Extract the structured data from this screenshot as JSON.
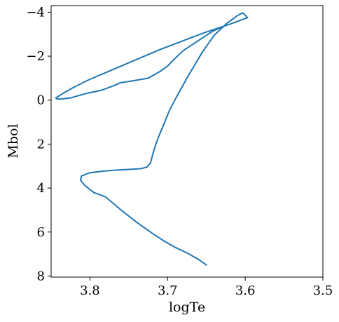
{
  "chart_data": {
    "type": "line",
    "title": "",
    "xlabel": "logTe",
    "ylabel": "Mbol",
    "xlim": [
      3.85,
      3.5
    ],
    "ylim": [
      8.05,
      -4.3
    ],
    "x_inverted": true,
    "y_inverted": true,
    "xticks": [
      3.8,
      3.7,
      3.6,
      3.5
    ],
    "xtick_labels": [
      "3.8",
      "3.7",
      "3.6",
      "3.5"
    ],
    "yticks": [
      -4,
      -2,
      0,
      2,
      4,
      6,
      8
    ],
    "ytick_labels": [
      "−4",
      "−2",
      "0",
      "2",
      "4",
      "6",
      "8"
    ],
    "grid": false,
    "legend": "none",
    "series": [
      {
        "color": "#1f77b4",
        "x": [
          3.65,
          3.66,
          3.675,
          3.69,
          3.705,
          3.72,
          3.74,
          3.76,
          3.78,
          3.795,
          3.806,
          3.812,
          3.811,
          3.8,
          3.78,
          3.765,
          3.75,
          3.735,
          3.727,
          3.722,
          3.719,
          3.716,
          3.712,
          3.706,
          3.698,
          3.69,
          3.683,
          3.676,
          3.666,
          3.655,
          3.64,
          3.625,
          3.61,
          3.603,
          3.597,
          3.62,
          3.65,
          3.68,
          3.71,
          3.74,
          3.77,
          3.8,
          3.82,
          3.835,
          3.844,
          3.843,
          3.838,
          3.825,
          3.805,
          3.785,
          3.77,
          3.76,
          3.745,
          3.725,
          3.71,
          3.7,
          3.692,
          3.68,
          3.665,
          3.65,
          3.641,
          3.632
        ],
        "y": [
          7.5,
          7.25,
          6.95,
          6.7,
          6.4,
          6.05,
          5.55,
          5.0,
          4.4,
          4.2,
          3.9,
          3.65,
          3.45,
          3.3,
          3.22,
          3.18,
          3.15,
          3.12,
          3.05,
          2.85,
          2.45,
          2.1,
          1.7,
          1.2,
          0.5,
          -0.05,
          -0.5,
          -0.95,
          -1.55,
          -2.2,
          -2.95,
          -3.45,
          -3.85,
          -3.97,
          -3.75,
          -3.45,
          -3.1,
          -2.7,
          -2.3,
          -1.85,
          -1.4,
          -0.95,
          -0.6,
          -0.3,
          -0.1,
          -0.06,
          -0.05,
          -0.1,
          -0.3,
          -0.45,
          -0.65,
          -0.8,
          -0.88,
          -1.0,
          -1.3,
          -1.55,
          -1.85,
          -2.25,
          -2.6,
          -2.95,
          -3.15,
          -3.3
        ]
      }
    ]
  }
}
